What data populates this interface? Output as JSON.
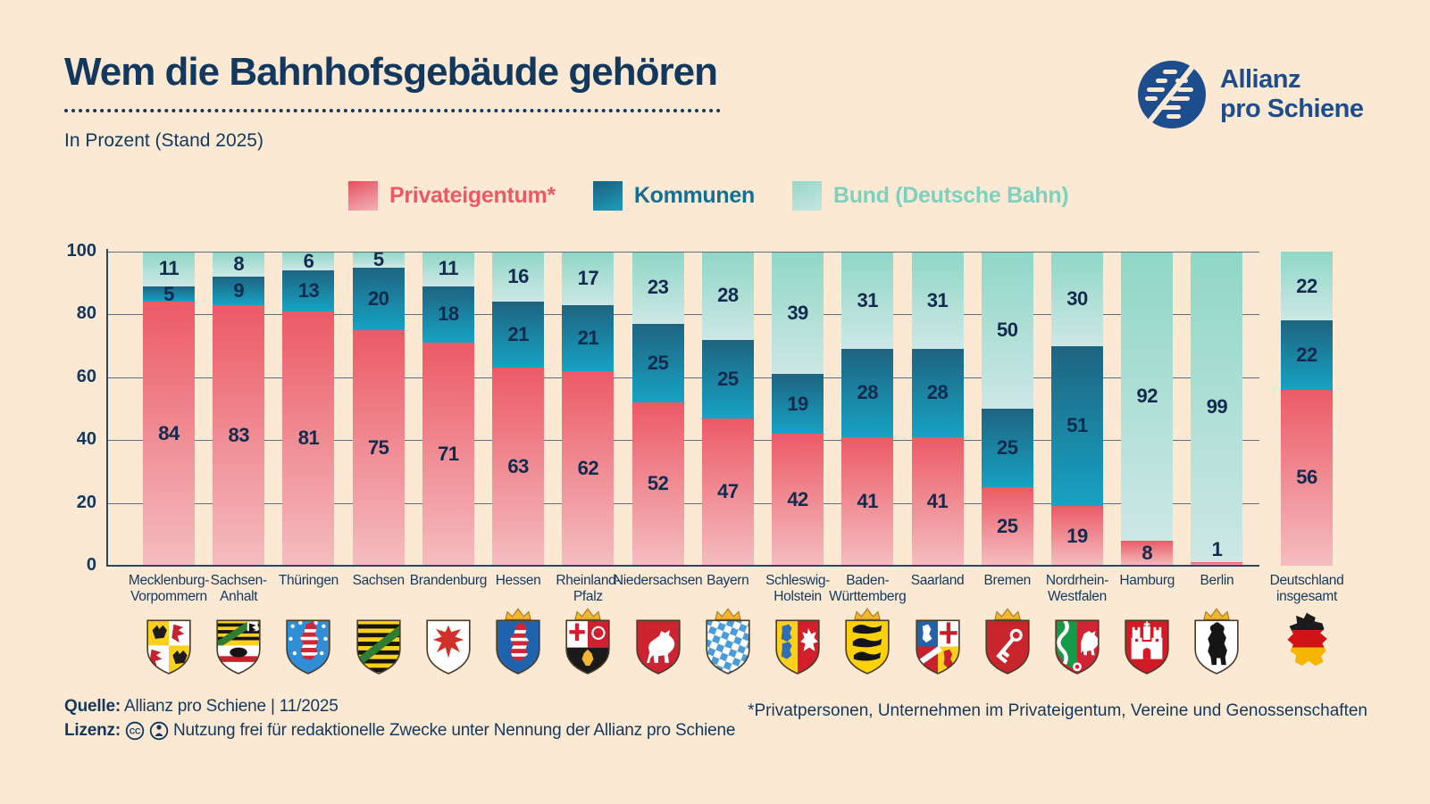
{
  "header": {
    "title": "Wem die Bahnhofsgebäude gehören",
    "subtitle": "In Prozent (Stand 2025)"
  },
  "logo": {
    "line1": "Allianz",
    "line2": "pro Schiene",
    "color": "#1d4d8c"
  },
  "legend": {
    "items": [
      {
        "id": "privateigentum",
        "label": "Privateigentum*",
        "text_color": "#e85a66",
        "swatch": [
          "#e4505e",
          "#f3b3b8"
        ]
      },
      {
        "id": "kommunen",
        "label": "Kommunen",
        "text_color": "#146f90",
        "swatch": [
          "#1a607c",
          "#1f9cbd"
        ]
      },
      {
        "id": "bund",
        "label": "Bund (Deutsche Bahn)",
        "text_color": "#7fd0bf",
        "swatch": [
          "#95d8c6",
          "#c8e5e2"
        ]
      }
    ]
  },
  "chart_data": {
    "type": "bar",
    "stacked": true,
    "unit": "percent",
    "ylim": [
      0,
      100
    ],
    "yticks": [
      0,
      20,
      40,
      60,
      80,
      100
    ],
    "grid": true,
    "series_names": [
      "Privateigentum*",
      "Kommunen",
      "Bund (Deutsche Bahn)"
    ],
    "states": [
      {
        "id": "mv",
        "label_lines": [
          "Mecklenburg-",
          "Vorpommern"
        ],
        "privateigentum": 84,
        "kommunen": 5,
        "bund": 11
      },
      {
        "id": "st",
        "label_lines": [
          "Sachsen-",
          "Anhalt"
        ],
        "privateigentum": 83,
        "kommunen": 9,
        "bund": 8
      },
      {
        "id": "th",
        "label_lines": [
          "Thüringen"
        ],
        "privateigentum": 81,
        "kommunen": 13,
        "bund": 6
      },
      {
        "id": "sn",
        "label_lines": [
          "Sachsen"
        ],
        "privateigentum": 75,
        "kommunen": 20,
        "bund": 5
      },
      {
        "id": "bb",
        "label_lines": [
          "Brandenburg"
        ],
        "privateigentum": 71,
        "kommunen": 18,
        "bund": 11
      },
      {
        "id": "he",
        "label_lines": [
          "Hessen"
        ],
        "privateigentum": 63,
        "kommunen": 21,
        "bund": 16
      },
      {
        "id": "rp",
        "label_lines": [
          "Rheinland-",
          "Pfalz"
        ],
        "privateigentum": 62,
        "kommunen": 21,
        "bund": 17
      },
      {
        "id": "ni",
        "label_lines": [
          "Niedersachsen"
        ],
        "privateigentum": 52,
        "kommunen": 25,
        "bund": 23
      },
      {
        "id": "by",
        "label_lines": [
          "Bayern"
        ],
        "privateigentum": 47,
        "kommunen": 25,
        "bund": 28
      },
      {
        "id": "sh",
        "label_lines": [
          "Schleswig-",
          "Holstein"
        ],
        "privateigentum": 42,
        "kommunen": 19,
        "bund": 39
      },
      {
        "id": "bw",
        "label_lines": [
          "Baden-",
          "Württemberg"
        ],
        "privateigentum": 41,
        "kommunen": 28,
        "bund": 31
      },
      {
        "id": "sl",
        "label_lines": [
          "Saarland"
        ],
        "privateigentum": 41,
        "kommunen": 28,
        "bund": 31
      },
      {
        "id": "hb",
        "label_lines": [
          "Bremen"
        ],
        "privateigentum": 25,
        "kommunen": 25,
        "bund": 50
      },
      {
        "id": "nw",
        "label_lines": [
          "Nordrhein-",
          "Westfalen"
        ],
        "privateigentum": 19,
        "kommunen": 51,
        "bund": 30
      },
      {
        "id": "hh",
        "label_lines": [
          "Hamburg"
        ],
        "privateigentum": 8,
        "kommunen": null,
        "bund": 92
      },
      {
        "id": "be",
        "label_lines": [
          "Berlin"
        ],
        "privateigentum": 1,
        "kommunen": null,
        "bund": 99
      },
      {
        "id": "de",
        "label_lines": [
          "Deutschland",
          "insgesamt"
        ],
        "privateigentum": 56,
        "kommunen": 22,
        "bund": 22,
        "total_column": true
      }
    ],
    "colors": {
      "privateigentum": [
        "#ec5a66",
        "#f4bdc1"
      ],
      "kommunen": [
        "#1e6480",
        "#17a2c3"
      ],
      "bund": [
        "#8fd7c5",
        "#cde7e5"
      ]
    }
  },
  "footer": {
    "source_label": "Quelle:",
    "source_text": "Allianz pro Schiene | 11/2025",
    "license_label": "Lizenz:",
    "license_text": "Nutzung frei für redaktionelle Zwecke unter Nennung der Allianz pro Schiene",
    "footnote": "*Privatpersonen, Unternehmen im Privateigentum, Vereine und Genossenschaften"
  }
}
